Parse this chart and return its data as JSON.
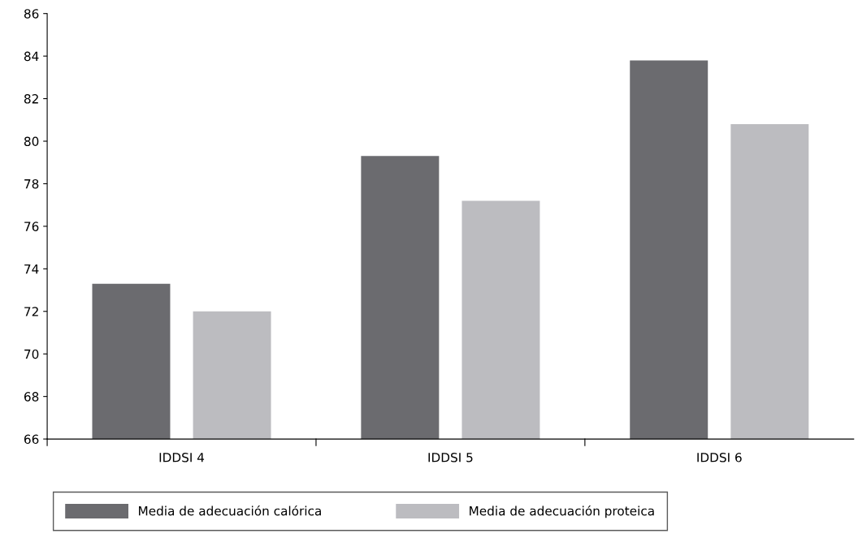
{
  "chart_data": {
    "type": "bar",
    "categories": [
      "IDDSI 4",
      "IDDSI 5",
      "IDDSI 6"
    ],
    "series": [
      {
        "name": "Media de adecuación calórica",
        "color": "#6b6b6f",
        "values": [
          73.3,
          79.3,
          83.8
        ]
      },
      {
        "name": "Media de adecuación proteica",
        "color": "#bcbcc0",
        "values": [
          72.0,
          77.2,
          80.8
        ]
      }
    ],
    "ylim": [
      66,
      86
    ],
    "yticks": [
      66,
      68,
      70,
      72,
      74,
      76,
      78,
      80,
      82,
      84,
      86
    ],
    "grid": false,
    "legend": "bottom"
  }
}
